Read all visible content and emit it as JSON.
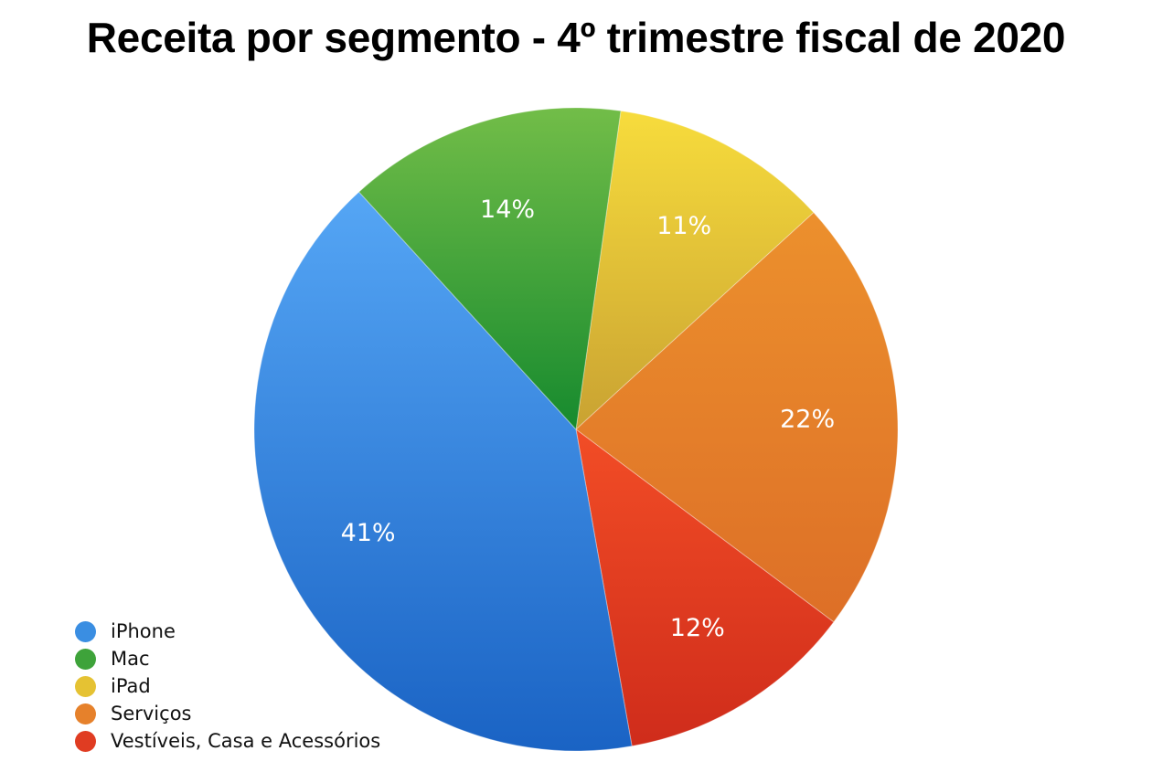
{
  "title": "Receita por segmento - 4º trimestre fiscal de 2020",
  "chart_data": {
    "type": "pie",
    "title": "Receita por segmento - 4º trimestre fiscal de 2020",
    "categories": [
      "iPad",
      "Serviços",
      "Vestíveis, Casa e Acessórios",
      "iPhone",
      "Mac"
    ],
    "values": [
      11,
      22,
      12,
      41,
      14
    ],
    "labels": [
      "11%",
      "22%",
      "12%",
      "41%",
      "14%"
    ],
    "colors": [
      "#e5c233",
      "#e6812b",
      "#e03c22",
      "#3a8ee2",
      "#3ea33a"
    ],
    "legend_position": "bottom-left",
    "start_angle_deg": 8,
    "direction": "clockwise"
  },
  "legend": [
    {
      "label": "iPhone",
      "color": "#3a8ee2"
    },
    {
      "label": "Mac",
      "color": "#3ea33a"
    },
    {
      "label": "iPad",
      "color": "#e5c233"
    },
    {
      "label": "Serviços",
      "color": "#e6812b"
    },
    {
      "label": "Vestíveis, Casa e Acessórios",
      "color": "#e03c22"
    }
  ]
}
